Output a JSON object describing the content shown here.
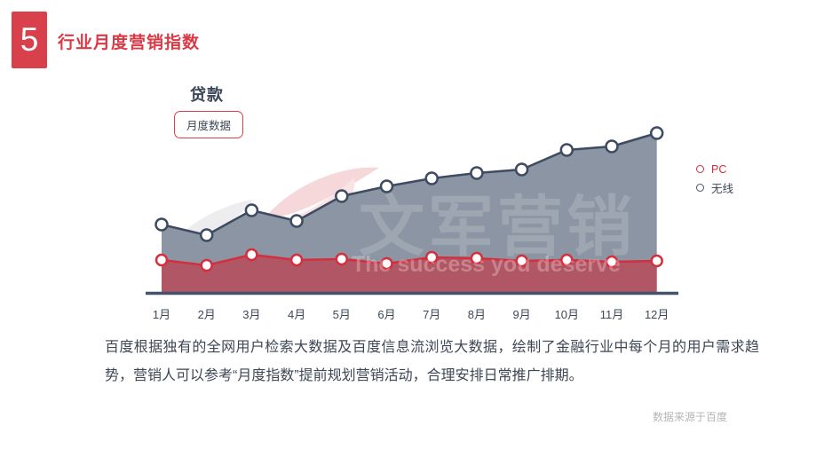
{
  "header": {
    "number": "5",
    "title": "行业月度营销指数"
  },
  "chart_header": {
    "title": "贷款",
    "button_label": "月度数据"
  },
  "legend": [
    {
      "label": "PC",
      "color": "#d42f3e",
      "text_color": "#d42f3e"
    },
    {
      "label": "无线",
      "color": "#4a5668",
      "text_color": "#3c4858"
    }
  ],
  "watermark": {
    "text": "文军营销",
    "tagline": "The success you deserve"
  },
  "footer": {
    "description": "百度根据独有的全网用户检索大数据及百度信息流浏览大数据，绘制了金融行业中每个月的用户需求趋势，营销人可以参考“月度指数”提前规划营销活动，合理安排日常推广排期。",
    "source_note": "数据来源于百度"
  },
  "colors": {
    "accent_red": "#d8414b",
    "title_red": "#d93a45",
    "dark_slate": "#3c4858",
    "axis_line": "#45536a",
    "wireless_fill": "#8b95a3",
    "pc_fill": "rgba(204,42,56,0.58)"
  },
  "chart_data": {
    "type": "area",
    "title": "贷款",
    "subtitle": "月度数据",
    "categories": [
      "1月",
      "2月",
      "3月",
      "4月",
      "5月",
      "6月",
      "7月",
      "8月",
      "9月",
      "10月",
      "11月",
      "12月"
    ],
    "series": [
      {
        "name": "无线",
        "line_color": "#3e4c61",
        "fill_color": "#8b95a3",
        "marker_radius": 6.5,
        "values": [
          76,
          64,
          92,
          80,
          108,
          119,
          128,
          134,
          138,
          160,
          164,
          179
        ]
      },
      {
        "name": "PC",
        "line_color": "#d42f3e",
        "fill_color": "rgba(204,42,56,0.58)",
        "marker_radius": 6,
        "values": [
          36,
          30,
          42,
          36,
          37,
          32,
          39,
          38,
          35,
          36,
          34,
          35
        ]
      }
    ],
    "xlabel": "",
    "ylabel": "",
    "ylim": [
      0,
      200
    ],
    "grid": false,
    "legend_position": "right",
    "note": "No numeric y-axis shown on screen; values are relative index heights estimated from the plot."
  }
}
